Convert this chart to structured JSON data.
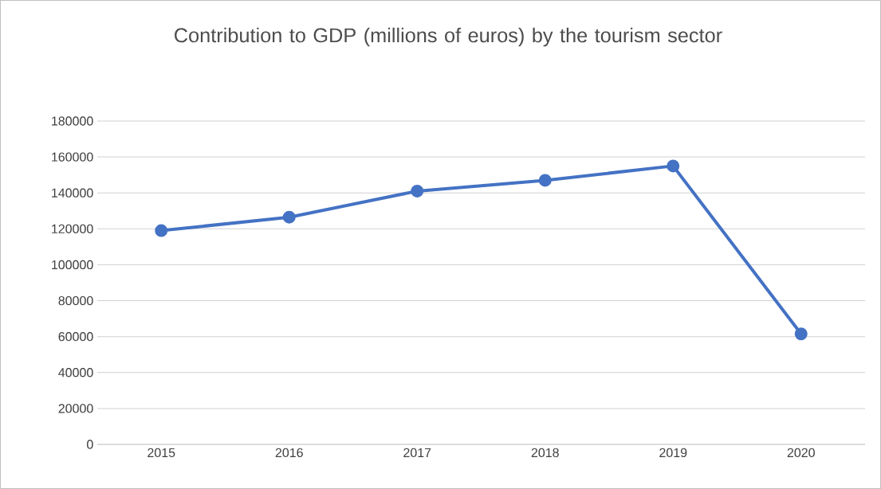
{
  "chart_data": {
    "type": "line",
    "title": "Contribution to GDP (millions of euros) by the tourism sector",
    "categories": [
      "2015",
      "2016",
      "2017",
      "2018",
      "2019",
      "2020"
    ],
    "series": [
      {
        "color": "#4472c4",
        "values": [
          119000,
          126500,
          141000,
          147000,
          155000,
          61500
        ]
      }
    ],
    "ylim": [
      0,
      180000
    ],
    "yticks": [
      0,
      20000,
      40000,
      60000,
      80000,
      100000,
      120000,
      140000,
      160000,
      180000
    ],
    "grid": "y",
    "marker": "circle"
  }
}
